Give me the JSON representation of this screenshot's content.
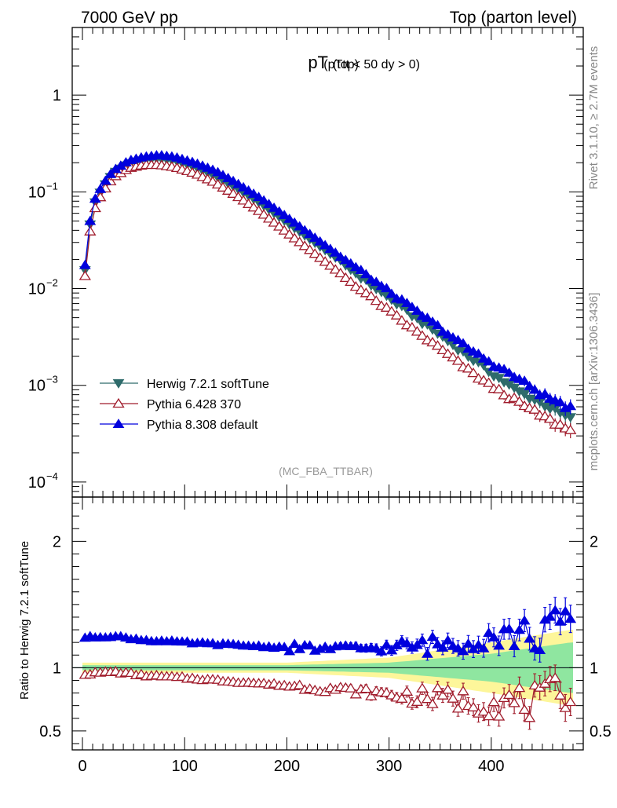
{
  "header": {
    "left": "7000 GeV pp",
    "right": "Top (parton level)"
  },
  "plot_title": {
    "main": "pT",
    "sub": "(top)",
    "cut": "(pTtt < 50 dy > 0)"
  },
  "side_labels": {
    "rivet": "Rivet 3.1.10, ≥ 2.7M events",
    "mcplots": "mcplots.cern.ch [arXiv:1306.3436]"
  },
  "analysis_label": "(MC_FBA_TTBAR)",
  "ratio_ylabel": "Ratio to Herwig 7.2.1 softTune",
  "legend": [
    {
      "name": "Herwig 7.2.1 softTune",
      "color": "#2e6b6b",
      "marker": "triangle-down-filled"
    },
    {
      "name": "Pythia 6.428 370",
      "color": "#a01c2c",
      "marker": "triangle-up-open"
    },
    {
      "name": "Pythia 8.308 default",
      "color": "#0000dd",
      "marker": "triangle-up-filled"
    }
  ],
  "chart_data": {
    "type": "line",
    "x": {
      "min": -10,
      "max": 490,
      "ticks": [
        0,
        100,
        200,
        300,
        400
      ],
      "tick_labels": [
        "0",
        "100",
        "200",
        "300",
        "400"
      ]
    },
    "main_y": {
      "scale": "log",
      "min": 7e-05,
      "max": 5,
      "ticks": [
        1,
        0.1,
        0.01,
        0.001,
        0.0001
      ]
    },
    "main_y_tick_labels": [
      {
        "base": "1",
        "exp": ""
      },
      {
        "base": "10",
        "exp": "−1"
      },
      {
        "base": "10",
        "exp": "−2"
      },
      {
        "base": "10",
        "exp": "−3"
      },
      {
        "base": "10",
        "exp": "−4"
      }
    ],
    "ratio_y": {
      "min": 0.35,
      "max": 2.35,
      "ticks": [
        0.5,
        1,
        2
      ],
      "tick_labels": [
        "0.5",
        "1",
        "2"
      ]
    },
    "series": [
      {
        "name": "Herwig 7.2.1 softTune",
        "anchors": [
          [
            2.5,
            0.0155
          ],
          [
            7.5,
            0.046
          ],
          [
            12.5,
            0.078
          ],
          [
            20,
            0.11
          ],
          [
            30,
            0.155
          ],
          [
            45,
            0.195
          ],
          [
            60,
            0.215
          ],
          [
            75,
            0.22
          ],
          [
            90,
            0.21
          ],
          [
            110,
            0.18
          ],
          [
            130,
            0.145
          ],
          [
            150,
            0.11
          ],
          [
            175,
            0.075
          ],
          [
            200,
            0.048
          ],
          [
            225,
            0.031
          ],
          [
            250,
            0.02
          ],
          [
            275,
            0.0125
          ],
          [
            300,
            0.008
          ],
          [
            325,
            0.0051
          ],
          [
            350,
            0.0033
          ],
          [
            375,
            0.0021
          ],
          [
            400,
            0.00135
          ],
          [
            425,
            0.00088
          ],
          [
            450,
            0.00065
          ],
          [
            477.5,
            0.00045
          ]
        ]
      },
      {
        "name": "Pythia 6.428 370",
        "anchors": [
          [
            2.5,
            0.0135
          ],
          [
            7.5,
            0.039
          ],
          [
            12.5,
            0.068
          ],
          [
            20,
            0.1
          ],
          [
            30,
            0.14
          ],
          [
            45,
            0.175
          ],
          [
            60,
            0.19
          ],
          [
            75,
            0.19
          ],
          [
            90,
            0.18
          ],
          [
            110,
            0.155
          ],
          [
            130,
            0.124
          ],
          [
            150,
            0.092
          ],
          [
            175,
            0.061
          ],
          [
            200,
            0.038
          ],
          [
            225,
            0.024
          ],
          [
            250,
            0.015
          ],
          [
            275,
            0.0093
          ],
          [
            300,
            0.0059
          ],
          [
            325,
            0.0037
          ],
          [
            350,
            0.0024
          ],
          [
            375,
            0.0015
          ],
          [
            400,
            0.00098
          ],
          [
            425,
            0.00068
          ],
          [
            450,
            0.00048
          ],
          [
            477.5,
            0.00034
          ]
        ]
      },
      {
        "name": "Pythia 8.308 default",
        "anchors": [
          [
            2.5,
            0.0175
          ],
          [
            7.5,
            0.05
          ],
          [
            12.5,
            0.085
          ],
          [
            20,
            0.12
          ],
          [
            30,
            0.165
          ],
          [
            45,
            0.21
          ],
          [
            60,
            0.23
          ],
          [
            75,
            0.24
          ],
          [
            90,
            0.23
          ],
          [
            110,
            0.2
          ],
          [
            130,
            0.165
          ],
          [
            150,
            0.125
          ],
          [
            175,
            0.085
          ],
          [
            200,
            0.055
          ],
          [
            225,
            0.035
          ],
          [
            250,
            0.0225
          ],
          [
            275,
            0.0145
          ],
          [
            300,
            0.0093
          ],
          [
            325,
            0.006
          ],
          [
            350,
            0.0039
          ],
          [
            375,
            0.0025
          ],
          [
            400,
            0.0017
          ],
          [
            425,
            0.0012
          ],
          [
            450,
            0.0008
          ],
          [
            477.5,
            0.00058
          ]
        ]
      }
    ],
    "ratio_series": [
      {
        "name": "Pythia 6.428 370",
        "anchors": [
          [
            2.5,
            0.95
          ],
          [
            30,
            0.97
          ],
          [
            60,
            0.94
          ],
          [
            100,
            0.92
          ],
          [
            150,
            0.89
          ],
          [
            200,
            0.86
          ],
          [
            250,
            0.83
          ],
          [
            300,
            0.79
          ],
          [
            350,
            0.76
          ],
          [
            400,
            0.73
          ],
          [
            450,
            0.72
          ],
          [
            477.5,
            0.86
          ]
        ]
      },
      {
        "name": "Pythia 8.308 default",
        "anchors": [
          [
            2.5,
            1.24
          ],
          [
            30,
            1.25
          ],
          [
            60,
            1.22
          ],
          [
            100,
            1.2
          ],
          [
            150,
            1.18
          ],
          [
            200,
            1.16
          ],
          [
            250,
            1.15
          ],
          [
            300,
            1.16
          ],
          [
            350,
            1.18
          ],
          [
            400,
            1.27
          ],
          [
            450,
            1.25
          ],
          [
            477.5,
            1.42
          ]
        ]
      }
    ],
    "uncertainty_bands": {
      "green_halfwidth": [
        [
          0,
          0.02
        ],
        [
          200,
          0.02
        ],
        [
          300,
          0.04
        ],
        [
          400,
          0.11
        ],
        [
          477.5,
          0.2
        ]
      ],
      "yellow_halfwidth": [
        [
          0,
          0.04
        ],
        [
          200,
          0.04
        ],
        [
          300,
          0.08
        ],
        [
          400,
          0.2
        ],
        [
          477.5,
          0.3
        ]
      ]
    }
  }
}
